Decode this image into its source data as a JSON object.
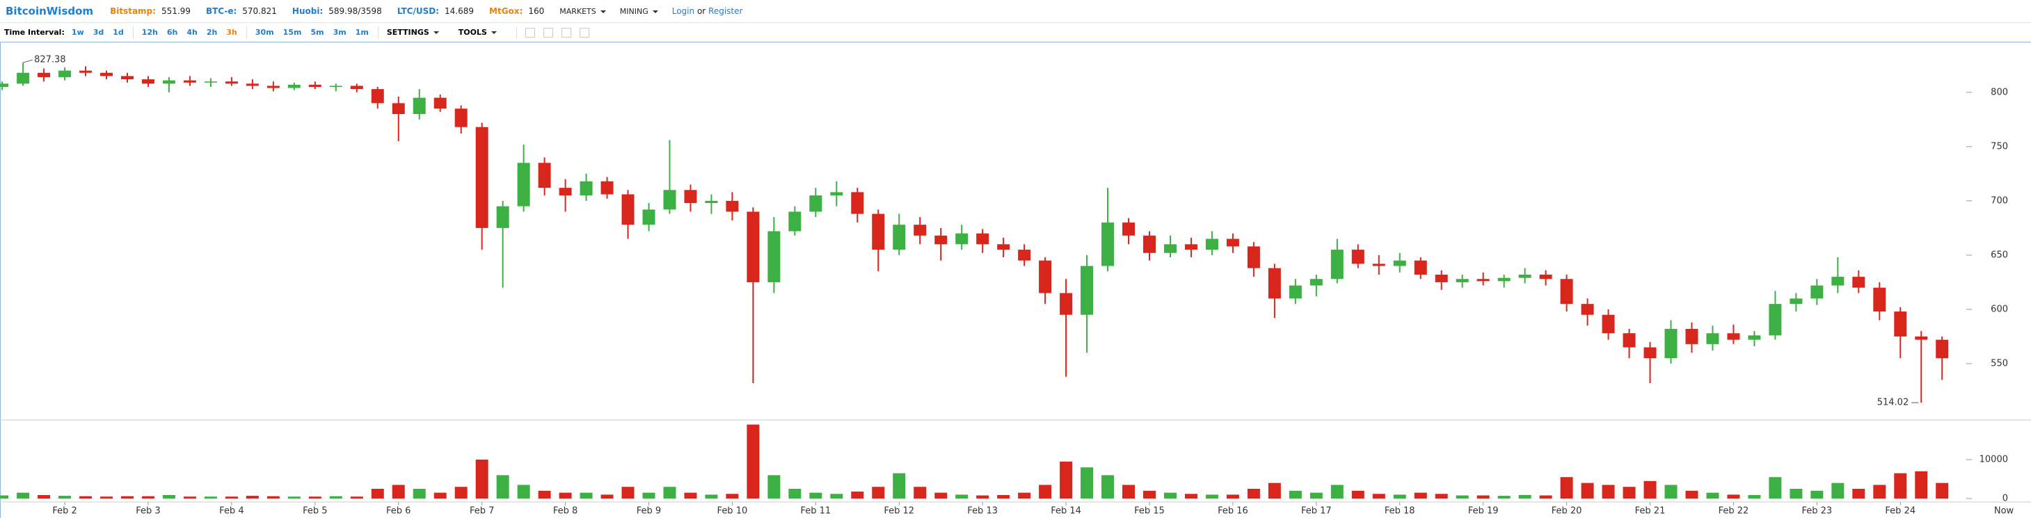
{
  "header": {
    "brand": "BitcoinWisdom",
    "tickers": [
      {
        "name": "Bitstamp:",
        "price": "551.99",
        "color": "#e8830c"
      },
      {
        "name": "BTC-e:",
        "price": "570.821",
        "color": "#1e7ed0"
      },
      {
        "name": "Huobi:",
        "price": "589.98/3598",
        "color": "#1e7ed0"
      },
      {
        "name": "LTC/USD:",
        "price": "14.689",
        "color": "#1e7ed0"
      },
      {
        "name": "MtGox:",
        "price": "160",
        "color": "#e8830c"
      }
    ],
    "menus": [
      "MARKETS",
      "MINING"
    ],
    "login": "Login",
    "or": "or",
    "register": "Register"
  },
  "toolbar": {
    "label": "Time Interval:",
    "intervals": [
      "1w",
      "3d",
      "1d",
      "12h",
      "6h",
      "4h",
      "2h",
      "3h",
      "30m",
      "15m",
      "5m",
      "3m",
      "1m"
    ],
    "active_index": 7,
    "settings": "SETTINGS",
    "tools": "TOOLS"
  },
  "chart_data": {
    "type": "candlestick",
    "up_color": "#3cb043",
    "down_color": "#d9261c",
    "x": [
      1.25,
      1.5,
      1.75,
      2,
      2.25,
      2.5,
      2.75,
      3,
      3.25,
      3.5,
      3.75,
      4,
      4.25,
      4.5,
      4.75,
      5,
      5.25,
      5.5,
      5.75,
      6,
      6.25,
      6.5,
      6.75,
      7,
      7.25,
      7.5,
      7.75,
      8,
      8.25,
      8.5,
      8.75,
      9,
      9.25,
      9.5,
      9.75,
      10,
      10.25,
      10.5,
      10.75,
      11,
      11.25,
      11.5,
      11.75,
      12,
      12.25,
      12.5,
      12.75,
      13,
      13.25,
      13.5,
      13.75,
      14,
      14.25,
      14.5,
      14.75,
      15,
      15.25,
      15.5,
      15.75,
      16,
      16.25,
      16.5,
      16.75,
      17,
      17.25,
      17.5,
      17.75,
      18,
      18.25,
      18.5,
      18.75,
      19,
      19.25,
      19.5,
      19.75,
      20,
      20.25,
      20.5,
      20.75,
      21,
      21.25,
      21.5,
      21.75,
      22,
      22.25,
      22.5,
      22.75,
      23,
      23.25,
      23.5,
      23.75,
      24,
      24.25,
      24.5
    ],
    "ohlc": [
      [
        805,
        810,
        802,
        808
      ],
      [
        808,
        827.38,
        806,
        818
      ],
      [
        818,
        822,
        810,
        814
      ],
      [
        814,
        823,
        811,
        820
      ],
      [
        820,
        824,
        815,
        818
      ],
      [
        818,
        820,
        812,
        815
      ],
      [
        815,
        818,
        809,
        812
      ],
      [
        812,
        815,
        805,
        808
      ],
      [
        808,
        814,
        800,
        811
      ],
      [
        811,
        815,
        806,
        809
      ],
      [
        809,
        813,
        805,
        810
      ],
      [
        810,
        814,
        806,
        808
      ],
      [
        808,
        812,
        803,
        806
      ],
      [
        806,
        810,
        801,
        804
      ],
      [
        804,
        809,
        802,
        807
      ],
      [
        807,
        810,
        803,
        805
      ],
      [
        805,
        808,
        801,
        806
      ],
      [
        806,
        808,
        800,
        803
      ],
      [
        803,
        805,
        785,
        790
      ],
      [
        790,
        796,
        755,
        780
      ],
      [
        780,
        803,
        775,
        795
      ],
      [
        795,
        798,
        782,
        785
      ],
      [
        785,
        788,
        762,
        768
      ],
      [
        768,
        772,
        655,
        675
      ],
      [
        675,
        700,
        620,
        695
      ],
      [
        695,
        752,
        690,
        735
      ],
      [
        735,
        740,
        705,
        712
      ],
      [
        712,
        720,
        690,
        705
      ],
      [
        705,
        725,
        700,
        718
      ],
      [
        718,
        722,
        702,
        706
      ],
      [
        706,
        710,
        665,
        678
      ],
      [
        678,
        698,
        672,
        692
      ],
      [
        692,
        756,
        688,
        710
      ],
      [
        710,
        715,
        690,
        698
      ],
      [
        698,
        706,
        688,
        700
      ],
      [
        700,
        708,
        682,
        690
      ],
      [
        690,
        694,
        532,
        625
      ],
      [
        625,
        685,
        615,
        672
      ],
      [
        672,
        695,
        668,
        690
      ],
      [
        690,
        712,
        685,
        705
      ],
      [
        705,
        718,
        695,
        708
      ],
      [
        708,
        712,
        680,
        688
      ],
      [
        688,
        692,
        635,
        655
      ],
      [
        655,
        688,
        650,
        678
      ],
      [
        678,
        685,
        660,
        668
      ],
      [
        668,
        675,
        645,
        660
      ],
      [
        660,
        678,
        655,
        670
      ],
      [
        670,
        674,
        652,
        660
      ],
      [
        660,
        666,
        648,
        655
      ],
      [
        655,
        660,
        640,
        645
      ],
      [
        645,
        648,
        605,
        615
      ],
      [
        615,
        628,
        538,
        595
      ],
      [
        595,
        650,
        560,
        640
      ],
      [
        640,
        712,
        635,
        680
      ],
      [
        680,
        684,
        660,
        668
      ],
      [
        668,
        672,
        645,
        652
      ],
      [
        652,
        668,
        648,
        660
      ],
      [
        660,
        666,
        648,
        655
      ],
      [
        655,
        672,
        650,
        665
      ],
      [
        665,
        670,
        652,
        658
      ],
      [
        658,
        662,
        630,
        638
      ],
      [
        638,
        642,
        592,
        610
      ],
      [
        610,
        628,
        605,
        622
      ],
      [
        622,
        632,
        612,
        628
      ],
      [
        628,
        665,
        624,
        655
      ],
      [
        655,
        660,
        638,
        642
      ],
      [
        642,
        650,
        632,
        640
      ],
      [
        640,
        652,
        634,
        645
      ],
      [
        645,
        648,
        628,
        632
      ],
      [
        632,
        636,
        618,
        625
      ],
      [
        625,
        632,
        620,
        628
      ],
      [
        628,
        634,
        622,
        626
      ],
      [
        626,
        632,
        620,
        629
      ],
      [
        629,
        638,
        624,
        632
      ],
      [
        632,
        636,
        622,
        628
      ],
      [
        628,
        632,
        598,
        605
      ],
      [
        605,
        610,
        585,
        595
      ],
      [
        595,
        600,
        572,
        578
      ],
      [
        578,
        582,
        555,
        565
      ],
      [
        565,
        570,
        532,
        555
      ],
      [
        555,
        590,
        550,
        582
      ],
      [
        582,
        588,
        560,
        568
      ],
      [
        568,
        585,
        562,
        578
      ],
      [
        578,
        586,
        568,
        572
      ],
      [
        572,
        580,
        566,
        576
      ],
      [
        576,
        617,
        572,
        605
      ],
      [
        605,
        615,
        598,
        610
      ],
      [
        610,
        628,
        604,
        622
      ],
      [
        622,
        648,
        615,
        630
      ],
      [
        630,
        636,
        615,
        620
      ],
      [
        620,
        625,
        590,
        598
      ],
      [
        598,
        602,
        555,
        575
      ],
      [
        575,
        580,
        514.02,
        572
      ],
      [
        572,
        575,
        535,
        555
      ]
    ],
    "volume": [
      800,
      1500,
      900,
      700,
      600,
      500,
      600,
      600,
      900,
      500,
      500,
      500,
      700,
      600,
      500,
      500,
      600,
      500,
      2500,
      3500,
      2500,
      1500,
      3000,
      10000,
      6000,
      3500,
      2000,
      1500,
      1500,
      1000,
      3000,
      1500,
      3000,
      1500,
      1000,
      1200,
      19000,
      6000,
      2500,
      1500,
      1200,
      1800,
      3000,
      6500,
      3000,
      1500,
      1000,
      800,
      900,
      1500,
      3500,
      9500,
      8000,
      6000,
      3500,
      2000,
      1500,
      1200,
      1000,
      1000,
      2500,
      4000,
      2000,
      1500,
      3500,
      2000,
      1200,
      1000,
      1500,
      1200,
      800,
      800,
      700,
      900,
      800,
      5500,
      4000,
      3500,
      3000,
      4500,
      3500,
      2000,
      1500,
      1000,
      900,
      5500,
      2500,
      2000,
      4000,
      2500,
      3500,
      6500,
      7000,
      4000
    ],
    "xlim": [
      1.224,
      24.79
    ],
    "xticks": [
      {
        "value": 2,
        "label": "Feb 2"
      },
      {
        "value": 3,
        "label": "Feb 3"
      },
      {
        "value": 4,
        "label": "Feb 4"
      },
      {
        "value": 5,
        "label": "Feb 5"
      },
      {
        "value": 6,
        "label": "Feb 6"
      },
      {
        "value": 7,
        "label": "Feb 7"
      },
      {
        "value": 8,
        "label": "Feb 8"
      },
      {
        "value": 9,
        "label": "Feb 9"
      },
      {
        "value": 10,
        "label": "Feb 10"
      },
      {
        "value": 11,
        "label": "Feb 11"
      },
      {
        "value": 12,
        "label": "Feb 12"
      },
      {
        "value": 13,
        "label": "Feb 13"
      },
      {
        "value": 14,
        "label": "Feb 14"
      },
      {
        "value": 15,
        "label": "Feb 15"
      },
      {
        "value": 16,
        "label": "Feb 16"
      },
      {
        "value": 17,
        "label": "Feb 17"
      },
      {
        "value": 18,
        "label": "Feb 18"
      },
      {
        "value": 19,
        "label": "Feb 19"
      },
      {
        "value": 20,
        "label": "Feb 20"
      },
      {
        "value": 21,
        "label": "Feb 21"
      },
      {
        "value": 22,
        "label": "Feb 22"
      },
      {
        "value": 23,
        "label": "Feb 23"
      },
      {
        "value": 24,
        "label": "Feb 24"
      }
    ],
    "ylim": [
      500,
      846
    ],
    "yticks": [
      550,
      600,
      650,
      700,
      750,
      800
    ],
    "volume_ylim": [
      0,
      20000
    ],
    "volume_yticks": [
      0,
      10000
    ],
    "high_label_index": 1,
    "low_label_index": 92,
    "now_label": "Now"
  }
}
